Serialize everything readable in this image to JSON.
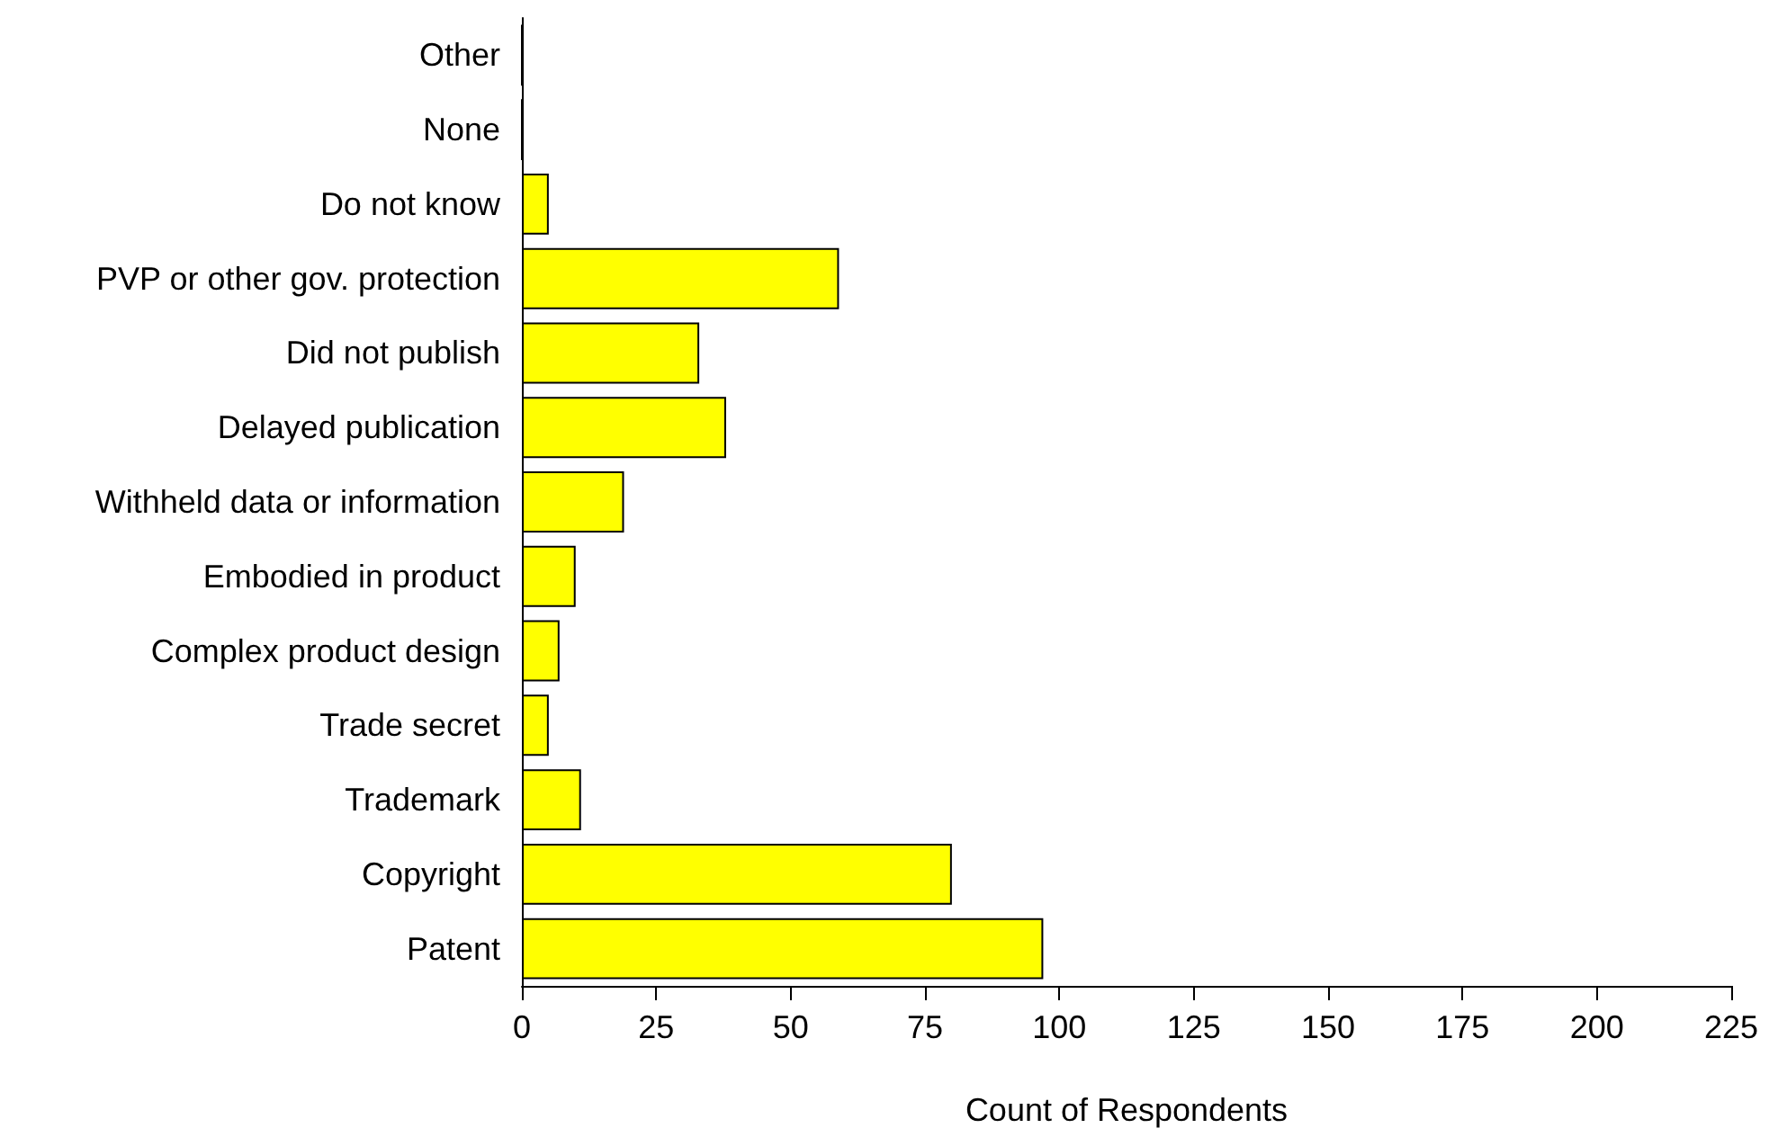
{
  "chart_data": {
    "type": "bar",
    "orientation": "horizontal",
    "xlabel": "Count of Respondents",
    "categories": [
      "Other",
      "None",
      "Do not know",
      "PVP or other gov. protection",
      "Did not publish",
      "Delayed publication",
      "Withheld data or information",
      "Embodied in product",
      "Complex product design",
      "Trade secret",
      "Trademark",
      "Copyright",
      "Patent"
    ],
    "values": [
      0,
      0,
      5,
      59,
      33,
      38,
      19,
      10,
      7,
      5,
      11,
      80,
      97
    ],
    "colors": [
      "#000000",
      "#000000",
      "#ffff00",
      "#ffff00",
      "#ffff00",
      "#ffff00",
      "#ffff00",
      "#ffff00",
      "#ffff00",
      "#ffff00",
      "#ffff00",
      "#ffff00",
      "#ffff00"
    ],
    "xlim": [
      0,
      225
    ],
    "xticks": [
      0,
      25,
      50,
      75,
      100,
      125,
      150,
      175,
      200,
      225
    ],
    "grid": false
  }
}
